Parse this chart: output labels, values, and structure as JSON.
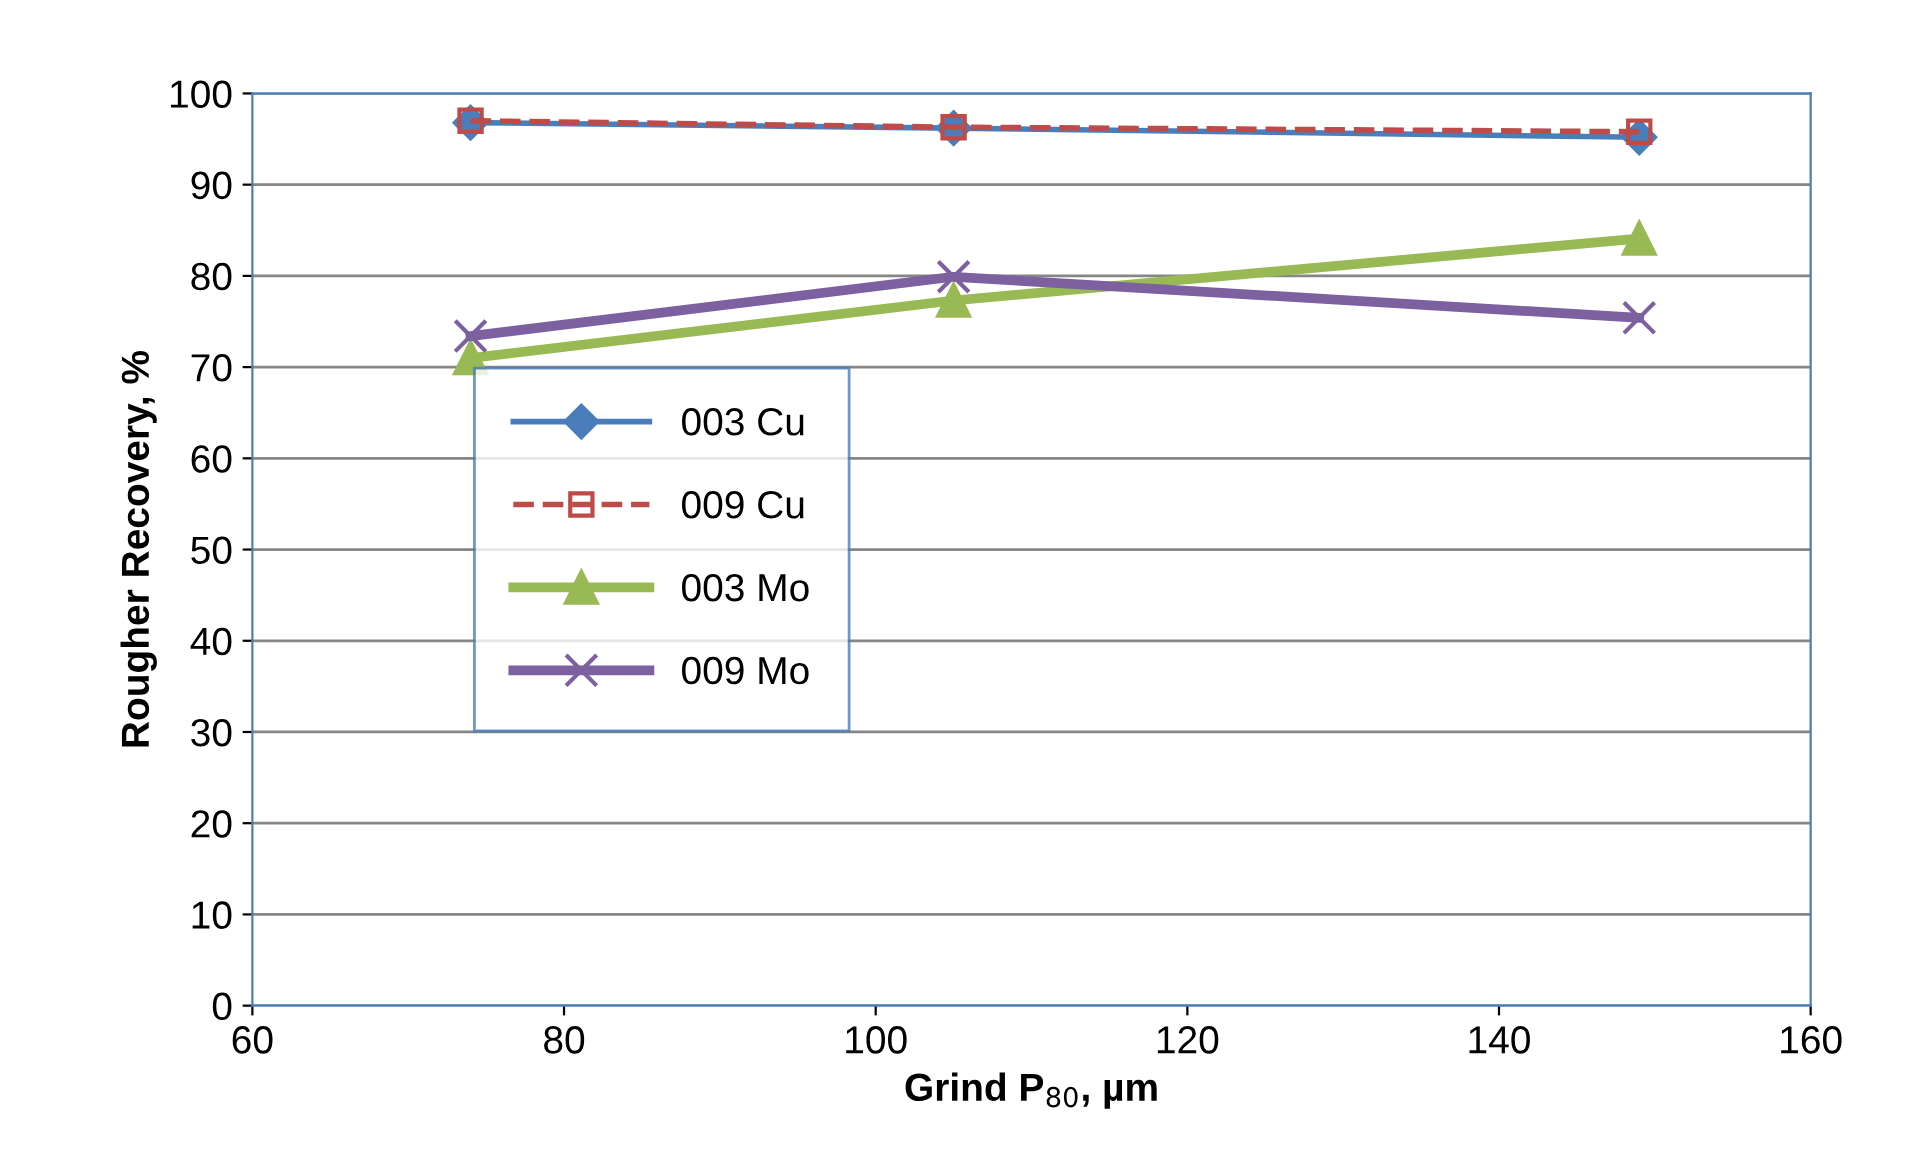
{
  "chart_data": {
    "type": "line",
    "xlabel": "Grind P$_{80}$, µm",
    "ylabel": "Rougher Recovery, %",
    "x": [
      74,
      105,
      149
    ],
    "series": [
      {
        "name": "003 Cu",
        "color": "#4a7ebb",
        "values": [
          96.8,
          96.2,
          95.2
        ],
        "marker": "diamond",
        "line_style": "solid"
      },
      {
        "name": "009 Cu",
        "color": "#be4b48",
        "values": [
          97.0,
          96.3,
          95.8
        ],
        "marker": "square",
        "line_style": "dashed"
      },
      {
        "name": "003 Mo",
        "color": "#98b954",
        "values": [
          71.0,
          77.3,
          84.1
        ],
        "marker": "triangle",
        "line_style": "solid"
      },
      {
        "name": "009 Mo",
        "color": "#7d60a0",
        "values": [
          73.4,
          79.9,
          75.4
        ],
        "marker": "cross",
        "line_style": "solid"
      }
    ],
    "xlim": [
      60,
      160
    ],
    "xticks": [
      60,
      80,
      100,
      120,
      140,
      160
    ],
    "ylim": [
      0,
      100
    ],
    "yticks": [
      0,
      10,
      20,
      30,
      40,
      50,
      60,
      70,
      80,
      90,
      100
    ],
    "grid": "y",
    "legend": "center left"
  }
}
